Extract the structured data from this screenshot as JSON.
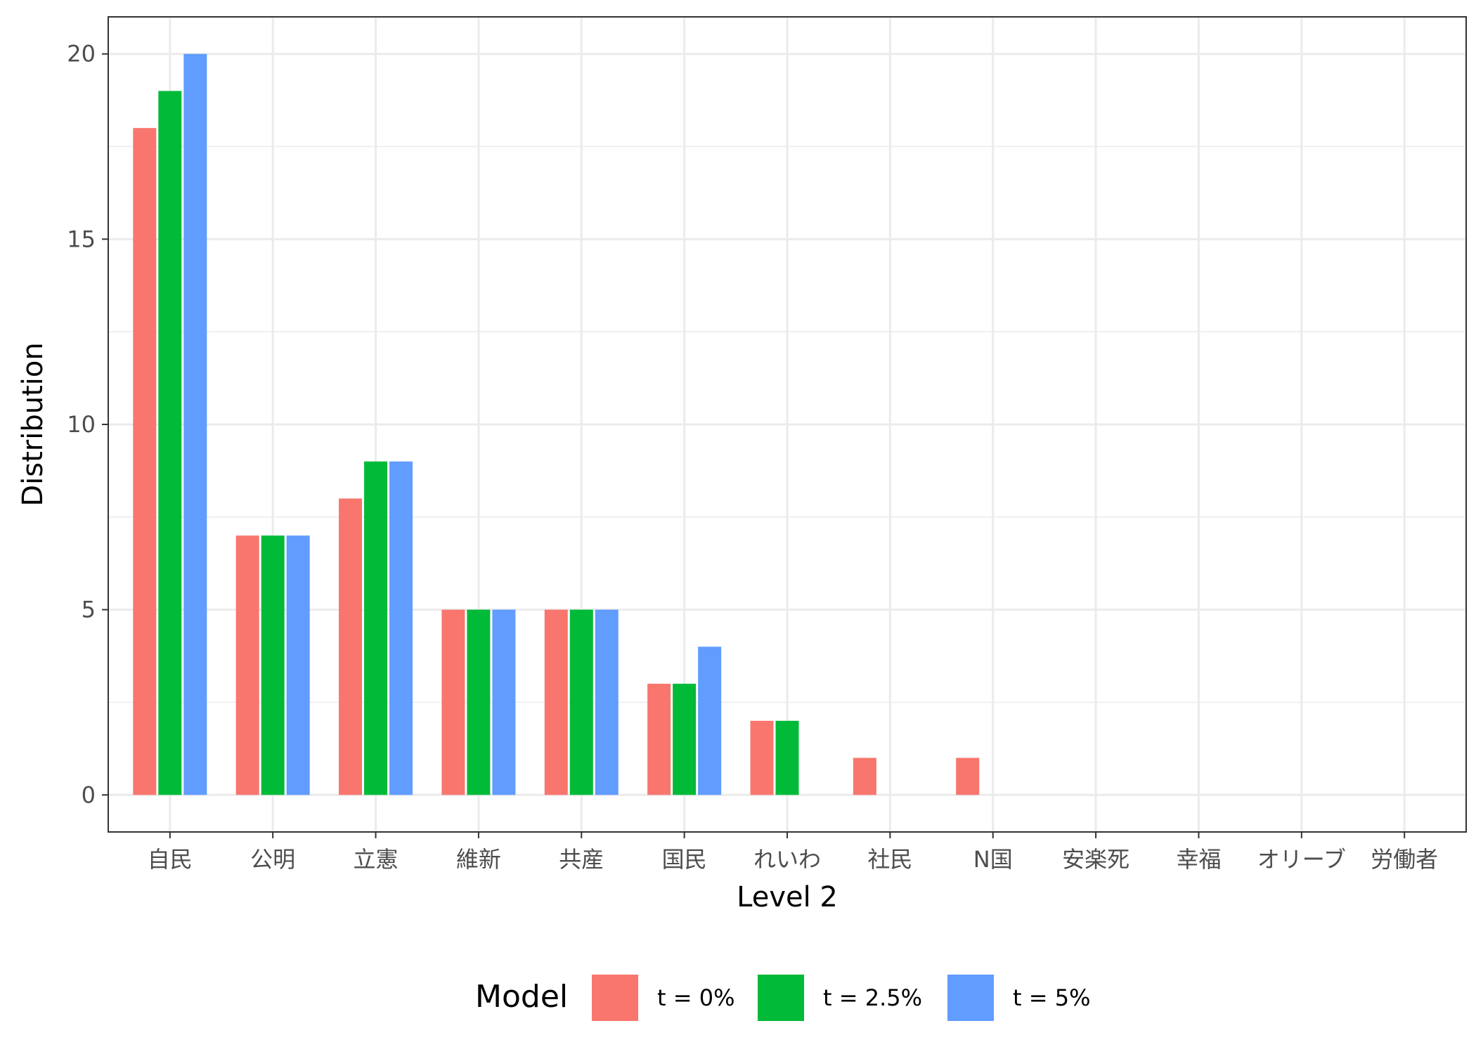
{
  "chart_data": {
    "type": "bar",
    "xlabel": "Level 2",
    "ylabel": "Distribution",
    "categories": [
      "自民",
      "公明",
      "立憲",
      "維新",
      "共産",
      "国民",
      "れいわ",
      "社民",
      "N国",
      "安楽死",
      "幸福",
      "オリーブ",
      "労働者"
    ],
    "series": [
      {
        "name": "t = 0%",
        "color": "#F8766D",
        "values": [
          18,
          7,
          8,
          5,
          5,
          3,
          2,
          1,
          1,
          0,
          0,
          0,
          0
        ]
      },
      {
        "name": "t = 2.5%",
        "color": "#00BA38",
        "values": [
          19,
          7,
          9,
          5,
          5,
          3,
          2,
          0,
          0,
          0,
          0,
          0,
          0
        ]
      },
      {
        "name": "t = 5%",
        "color": "#619CFF",
        "values": [
          20,
          7,
          9,
          5,
          5,
          4,
          0,
          0,
          0,
          0,
          0,
          0,
          0
        ]
      }
    ],
    "ylim": [
      -1,
      21
    ],
    "yticks": [
      0,
      5,
      10,
      15,
      20
    ],
    "grid": true,
    "legend": {
      "title": "Model",
      "position": "bottom"
    }
  }
}
